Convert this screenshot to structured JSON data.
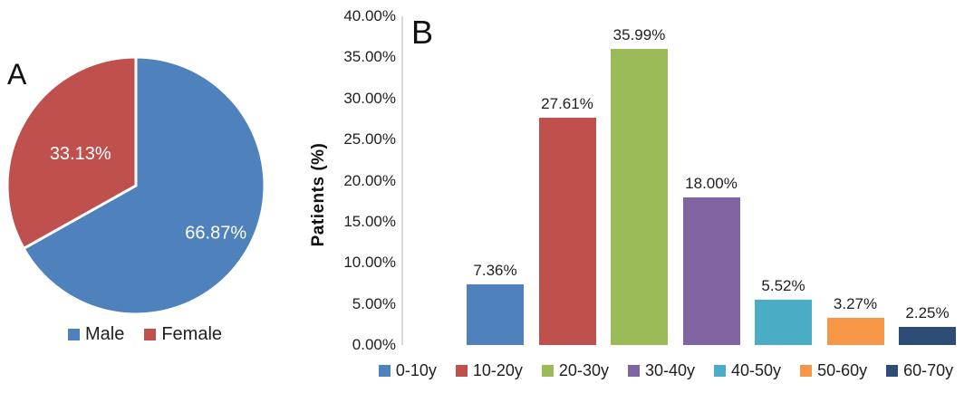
{
  "figure": {
    "panels": [
      {
        "id": "A",
        "label": "A"
      },
      {
        "id": "B",
        "label": "B"
      }
    ]
  },
  "chart_data": [
    {
      "type": "pie",
      "panel": "A",
      "labels": [
        "Male",
        "Female"
      ],
      "values": [
        66.87,
        33.13
      ],
      "slice_labels": [
        "66.87%",
        "33.13%"
      ],
      "colors": [
        "#4F81BD",
        "#C0504D"
      ],
      "start_angle": "top",
      "direction": "clockwise",
      "legend_position": "bottom",
      "title": ""
    },
    {
      "type": "bar",
      "panel": "B",
      "categories": [
        "0-10y",
        "10-20y",
        "20-30y",
        "30-40y",
        "40-50y",
        "50-60y",
        "60-70y"
      ],
      "values": [
        7.36,
        27.61,
        35.99,
        18.0,
        5.52,
        3.27,
        2.25
      ],
      "value_labels": [
        "7.36%",
        "27.61%",
        "35.99%",
        "18.00%",
        "5.52%",
        "3.27%",
        "2.25%"
      ],
      "colors": [
        "#4F81BD",
        "#C0504D",
        "#9BBB59",
        "#8064A2",
        "#4BACC6",
        "#F79646",
        "#2E4D76"
      ],
      "ylabel": "Patients (%)",
      "ylim": [
        0,
        40
      ],
      "ytick_step": 5,
      "ytick_labels": [
        "0.00%",
        "5.00%",
        "10.00%",
        "15.00%",
        "20.00%",
        "25.00%",
        "30.00%",
        "35.00%",
        "40.00%"
      ],
      "grid": false,
      "legend_position": "bottom",
      "title": ""
    }
  ]
}
